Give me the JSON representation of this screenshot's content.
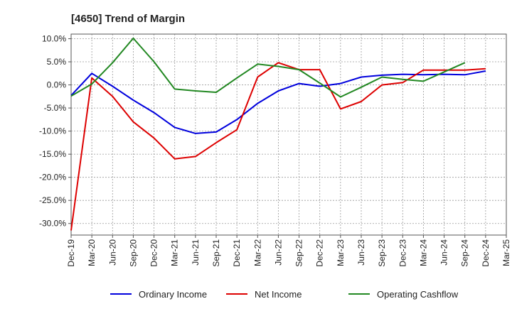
{
  "chart_data": {
    "type": "line",
    "title": "[4650]  Trend of Margin",
    "xlabel": "",
    "ylabel": "",
    "x": [
      "Dec-19",
      "Mar-20",
      "Jun-20",
      "Sep-20",
      "Dec-20",
      "Mar-21",
      "Jun-21",
      "Sep-21",
      "Dec-21",
      "Mar-22",
      "Jun-22",
      "Sep-22",
      "Dec-22",
      "Mar-23",
      "Jun-23",
      "Sep-23",
      "Dec-23",
      "Mar-24",
      "Jun-24",
      "Sep-24",
      "Dec-24",
      "Mar-25"
    ],
    "ylim": [
      -32.5,
      11.0
    ],
    "yticks": [
      10,
      5,
      0,
      -5,
      -10,
      -15,
      -20,
      -25,
      -30
    ],
    "ytick_labels": [
      "10.0%",
      "5.0%",
      "0.0%",
      "-5.0%",
      "-10.0%",
      "-15.0%",
      "-20.0%",
      "-25.0%",
      "-30.0%"
    ],
    "grid": true,
    "legend_position": "bottom",
    "series": [
      {
        "name": "Ordinary Income",
        "color": "#0000dd",
        "values": [
          -2.3,
          2.5,
          -0.3,
          -3.3,
          -6.0,
          -9.2,
          -10.5,
          -10.2,
          -7.5,
          -4.0,
          -1.3,
          0.3,
          -0.3,
          0.3,
          1.7,
          2.1,
          2.3,
          2.2,
          2.3,
          2.2,
          3.0,
          null
        ]
      },
      {
        "name": "Net Income",
        "color": "#dd0000",
        "values": [
          -31.5,
          1.5,
          -2.5,
          -8.0,
          -11.5,
          -16.0,
          -15.5,
          -12.5,
          -9.7,
          1.7,
          4.8,
          3.3,
          3.3,
          -5.2,
          -3.6,
          0.0,
          0.5,
          3.2,
          3.2,
          3.2,
          3.5,
          null
        ]
      },
      {
        "name": "Operating Cashflow",
        "color": "#228822",
        "values": [
          -2.4,
          0.2,
          4.8,
          10.1,
          5.0,
          -0.9,
          -1.3,
          -1.6,
          1.5,
          4.5,
          4.0,
          3.3,
          0.4,
          -2.6,
          -0.5,
          1.7,
          1.2,
          0.8,
          2.8,
          4.8,
          null,
          null
        ]
      }
    ]
  }
}
